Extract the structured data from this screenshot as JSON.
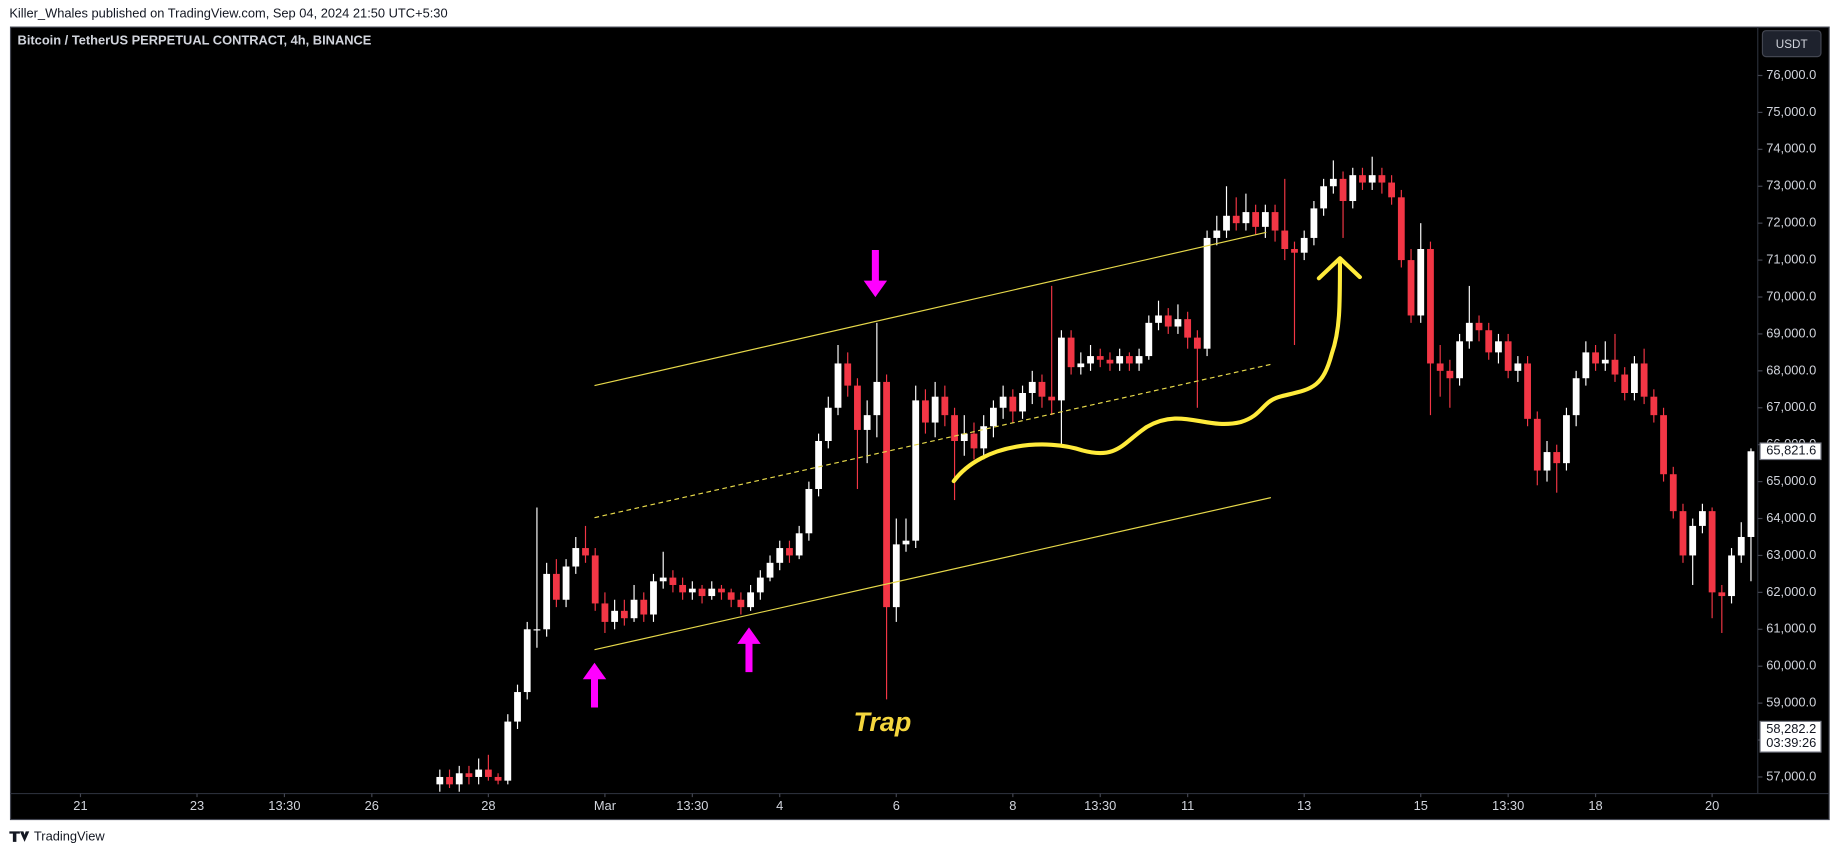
{
  "header": {
    "publisher": "Killer_Whales published on TradingView.com, Sep 04, 2024 21:50 UTC+5:30"
  },
  "footer": {
    "brand": "TradingView"
  },
  "chart_data": {
    "type": "candlestick",
    "title": "Bitcoin / TetherUS PERPETUAL CONTRACT, 4h, BINANCE",
    "currency": "USDT",
    "annotation": "Trap",
    "up_color": "#ffffff",
    "down_color": "#f23645",
    "xlim": [
      -44.2,
      135.7
    ],
    "xticks": [
      {
        "value": -37,
        "label": "21"
      },
      {
        "value": -25,
        "label": "23"
      },
      {
        "value": -16,
        "label": "13:30"
      },
      {
        "value": -7,
        "label": "26"
      },
      {
        "value": 5,
        "label": "28"
      },
      {
        "value": 17,
        "label": "Mar"
      },
      {
        "value": 26,
        "label": "13:30"
      },
      {
        "value": 35,
        "label": "4"
      },
      {
        "value": 47,
        "label": "6"
      },
      {
        "value": 59,
        "label": "8"
      },
      {
        "value": 68,
        "label": "13:30"
      },
      {
        "value": 77,
        "label": "11"
      },
      {
        "value": 89,
        "label": "13"
      },
      {
        "value": 101,
        "label": "15"
      },
      {
        "value": 110,
        "label": "13:30"
      },
      {
        "value": 119,
        "label": "18"
      },
      {
        "value": 131,
        "label": "20"
      }
    ],
    "ylim": [
      56550,
      77310
    ],
    "yticks": [
      {
        "value": 57000,
        "label": "57,000.0"
      },
      {
        "value": 58000,
        "label": "58,000.0"
      },
      {
        "value": 59000,
        "label": "59,000.0"
      },
      {
        "value": 60000,
        "label": "60,000.0"
      },
      {
        "value": 61000,
        "label": "61,000.0"
      },
      {
        "value": 62000,
        "label": "62,000.0"
      },
      {
        "value": 63000,
        "label": "63,000.0"
      },
      {
        "value": 64000,
        "label": "64,000.0"
      },
      {
        "value": 65000,
        "label": "65,000.0"
      },
      {
        "value": 66000,
        "label": "66,000.0"
      },
      {
        "value": 67000,
        "label": "67,000.0"
      },
      {
        "value": 68000,
        "label": "68,000.0"
      },
      {
        "value": 69000,
        "label": "69,000.0"
      },
      {
        "value": 70000,
        "label": "70,000.0"
      },
      {
        "value": 71000,
        "label": "71,000.0"
      },
      {
        "value": 72000,
        "label": "72,000.0"
      },
      {
        "value": 73000,
        "label": "73,000.0"
      },
      {
        "value": 74000,
        "label": "74,000.0"
      },
      {
        "value": 75000,
        "label": "75,000.0"
      },
      {
        "value": 76000,
        "label": "76,000.0"
      }
    ],
    "price_labels": [
      {
        "value": 65821.6,
        "label": "65,821.6"
      },
      {
        "value": 58282.2,
        "label": "58,282.2",
        "countdown": "03:39:26"
      }
    ],
    "candles": [
      [
        56800,
        57200,
        56600,
        57000
      ],
      [
        57000,
        57200,
        56700,
        56800
      ],
      [
        56800,
        57300,
        56600,
        57100
      ],
      [
        57100,
        57300,
        56800,
        57000
      ],
      [
        57000,
        57500,
        56800,
        57200
      ],
      [
        57200,
        57600,
        56900,
        57000
      ],
      [
        57000,
        57100,
        56800,
        56900
      ],
      [
        56900,
        58700,
        56800,
        58500
      ],
      [
        58500,
        59500,
        58300,
        59300
      ],
      [
        59300,
        61200,
        59100,
        61000
      ],
      [
        61000,
        64300,
        60500,
        61000
      ],
      [
        61000,
        62800,
        60800,
        62500
      ],
      [
        62500,
        62900,
        61600,
        61800
      ],
      [
        61800,
        62900,
        61600,
        62700
      ],
      [
        62700,
        63500,
        62500,
        63200
      ],
      [
        63200,
        63800,
        62800,
        63000
      ],
      [
        63000,
        63200,
        61500,
        61700
      ],
      [
        61700,
        62000,
        60900,
        61200
      ],
      [
        61200,
        61800,
        61000,
        61500
      ],
      [
        61500,
        61800,
        61100,
        61300
      ],
      [
        61300,
        62200,
        61200,
        61800
      ],
      [
        61800,
        62000,
        61200,
        61400
      ],
      [
        61400,
        62500,
        61200,
        62300
      ],
      [
        62300,
        63100,
        62100,
        62400
      ],
      [
        62400,
        62600,
        62000,
        62200
      ],
      [
        62200,
        62400,
        61800,
        62000
      ],
      [
        62000,
        62300,
        61800,
        62100
      ],
      [
        62100,
        62200,
        61700,
        61900
      ],
      [
        61900,
        62300,
        61800,
        62100
      ],
      [
        62100,
        62200,
        61800,
        62000
      ],
      [
        62000,
        62100,
        61600,
        61800
      ],
      [
        61800,
        62000,
        61400,
        61600
      ],
      [
        61600,
        62200,
        61500,
        62000
      ],
      [
        62000,
        62600,
        61800,
        62400
      ],
      [
        62400,
        63000,
        62300,
        62800
      ],
      [
        62800,
        63400,
        62600,
        63200
      ],
      [
        63200,
        63400,
        62800,
        63000
      ],
      [
        63000,
        63800,
        62900,
        63600
      ],
      [
        63600,
        65000,
        63400,
        64800
      ],
      [
        64800,
        66300,
        64600,
        66100
      ],
      [
        66100,
        67300,
        65900,
        67000
      ],
      [
        67000,
        68700,
        66800,
        68200
      ],
      [
        68200,
        68500,
        67300,
        67600
      ],
      [
        67600,
        67800,
        64800,
        66400
      ],
      [
        66400,
        67200,
        65500,
        66800
      ],
      [
        66800,
        69300,
        66200,
        67700
      ],
      [
        67700,
        67900,
        59100,
        61600
      ],
      [
        61600,
        64000,
        61200,
        63300
      ],
      [
        63300,
        64000,
        63100,
        63400
      ],
      [
        63400,
        67600,
        63200,
        67200
      ],
      [
        67200,
        67500,
        66300,
        66600
      ],
      [
        66600,
        67700,
        66200,
        67300
      ],
      [
        67300,
        67600,
        66500,
        66800
      ],
      [
        66800,
        67000,
        64500,
        66100
      ],
      [
        66100,
        66800,
        65700,
        66300
      ],
      [
        66300,
        66600,
        65600,
        65900
      ],
      [
        65900,
        66800,
        65600,
        66500
      ],
      [
        66500,
        67200,
        66200,
        67000
      ],
      [
        67000,
        67600,
        66700,
        67300
      ],
      [
        67300,
        67500,
        66600,
        66900
      ],
      [
        66900,
        67600,
        66700,
        67400
      ],
      [
        67400,
        68000,
        67100,
        67700
      ],
      [
        67700,
        67900,
        67000,
        67300
      ],
      [
        67300,
        70300,
        66800,
        67200
      ],
      [
        67200,
        69100,
        66000,
        68900
      ],
      [
        68900,
        69100,
        67900,
        68100
      ],
      [
        68100,
        68500,
        67900,
        68200
      ],
      [
        68200,
        68700,
        68000,
        68400
      ],
      [
        68400,
        68600,
        68100,
        68300
      ],
      [
        68300,
        68500,
        68000,
        68200
      ],
      [
        68200,
        68600,
        68000,
        68400
      ],
      [
        68400,
        68500,
        68000,
        68200
      ],
      [
        68200,
        68600,
        68000,
        68400
      ],
      [
        68400,
        69500,
        68300,
        69300
      ],
      [
        69300,
        69900,
        69100,
        69500
      ],
      [
        69500,
        69700,
        69000,
        69200
      ],
      [
        69200,
        69800,
        69000,
        69400
      ],
      [
        69400,
        69600,
        68600,
        68900
      ],
      [
        68900,
        69100,
        67000,
        68600
      ],
      [
        68600,
        71800,
        68400,
        71600
      ],
      [
        71600,
        72200,
        71400,
        71800
      ],
      [
        71800,
        73000,
        71600,
        72200
      ],
      [
        72200,
        72700,
        71800,
        72000
      ],
      [
        72000,
        72800,
        71800,
        72300
      ],
      [
        72300,
        72500,
        71700,
        71900
      ],
      [
        71900,
        72500,
        71600,
        72300
      ],
      [
        72300,
        72500,
        71500,
        71800
      ],
      [
        71800,
        73200,
        71000,
        71300
      ],
      [
        71300,
        71500,
        68700,
        71200
      ],
      [
        71200,
        71800,
        71000,
        71600
      ],
      [
        71600,
        72600,
        71400,
        72400
      ],
      [
        72400,
        73200,
        72200,
        73000
      ],
      [
        73000,
        73700,
        72800,
        73200
      ],
      [
        73200,
        73400,
        71600,
        72600
      ],
      [
        72600,
        73500,
        72400,
        73300
      ],
      [
        73300,
        73500,
        72900,
        73100
      ],
      [
        73100,
        73800,
        72900,
        73300
      ],
      [
        73300,
        73500,
        72800,
        73100
      ],
      [
        73100,
        73300,
        72500,
        72700
      ],
      [
        72700,
        72900,
        70800,
        71000
      ],
      [
        71000,
        71300,
        69300,
        69500
      ],
      [
        69500,
        72000,
        69300,
        71300
      ],
      [
        71300,
        71500,
        66800,
        68200
      ],
      [
        68200,
        68700,
        67300,
        68000
      ],
      [
        68000,
        68300,
        67000,
        67800
      ],
      [
        67800,
        69000,
        67600,
        68800
      ],
      [
        68800,
        70300,
        68600,
        69300
      ],
      [
        69300,
        69500,
        68800,
        69100
      ],
      [
        69100,
        69300,
        68300,
        68500
      ],
      [
        68500,
        69000,
        68200,
        68800
      ],
      [
        68800,
        69000,
        67800,
        68000
      ],
      [
        68000,
        68400,
        67700,
        68200
      ],
      [
        68200,
        68400,
        66500,
        66700
      ],
      [
        66700,
        66900,
        64900,
        65300
      ],
      [
        65300,
        66100,
        65000,
        65800
      ],
      [
        65800,
        66000,
        64700,
        65500
      ],
      [
        65500,
        67000,
        65300,
        66800
      ],
      [
        66800,
        68000,
        66500,
        67800
      ],
      [
        67800,
        68800,
        67600,
        68500
      ],
      [
        68500,
        68700,
        68000,
        68200
      ],
      [
        68200,
        68800,
        68000,
        68300
      ],
      [
        68300,
        69000,
        67700,
        67900
      ],
      [
        67900,
        68100,
        67200,
        67400
      ],
      [
        67400,
        68400,
        67200,
        68200
      ],
      [
        68200,
        68600,
        67100,
        67300
      ],
      [
        67300,
        67500,
        66600,
        66800
      ],
      [
        66800,
        67000,
        65000,
        65200
      ],
      [
        65200,
        65400,
        64000,
        64200
      ],
      [
        64200,
        64400,
        62800,
        63000
      ],
      [
        63000,
        64000,
        62200,
        63800
      ],
      [
        63800,
        64400,
        63600,
        64200
      ],
      [
        64200,
        64300,
        61300,
        62000
      ],
      [
        62000,
        62200,
        60900,
        61900
      ],
      [
        61900,
        63200,
        61700,
        63000
      ],
      [
        63000,
        63900,
        62800,
        63500
      ],
      [
        63500,
        65900,
        62300,
        65821.6
      ]
    ]
  }
}
